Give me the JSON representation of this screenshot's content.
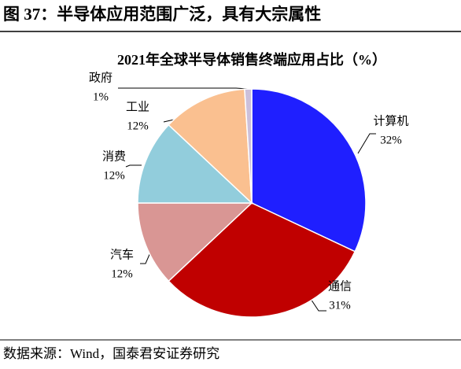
{
  "figure_title": "图 37：半导体应用范围广泛，具有大宗属性",
  "source": "数据来源：Wind，国泰君安证券研究",
  "chart_data": {
    "type": "pie",
    "title": "2021年全球半导体销售终端应用占比（%）",
    "categories": [
      "计算机",
      "通信",
      "汽车",
      "消费",
      "工业",
      "政府"
    ],
    "values": [
      32,
      31,
      12,
      12,
      12,
      1
    ],
    "value_labels": [
      "32%",
      "31%",
      "12%",
      "12%",
      "12%",
      "1%"
    ],
    "colors": [
      "#1f1fff",
      "#c00000",
      "#d99694",
      "#92cddc",
      "#fac090",
      "#ccc0da"
    ]
  }
}
